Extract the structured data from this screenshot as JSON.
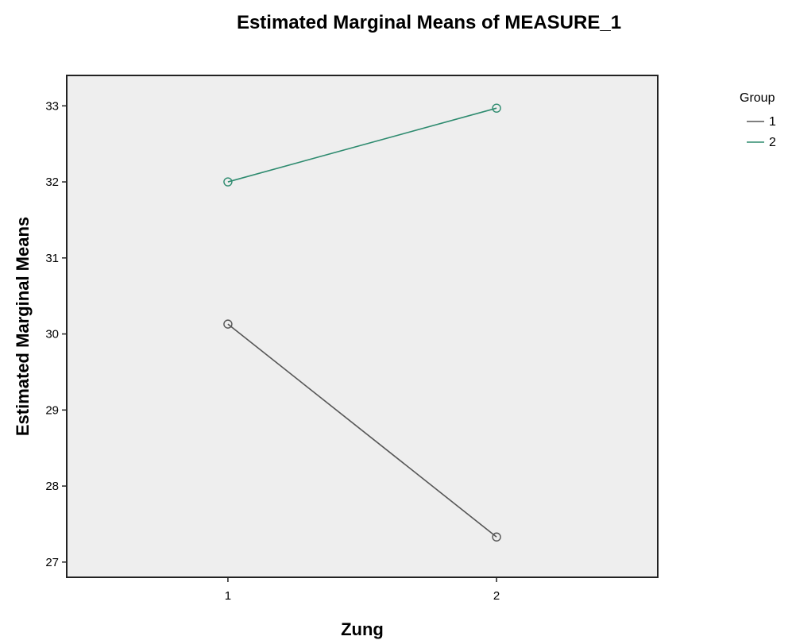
{
  "chart_data": {
    "type": "line",
    "title": "Estimated Marginal Means of MEASURE_1",
    "xlabel": "Zung",
    "ylabel": "Estimated Marginal Means",
    "categories": [
      "1",
      "2"
    ],
    "xlim": [
      0.4,
      2.6
    ],
    "ylim": [
      26.8,
      33.4
    ],
    "yticks": [
      27,
      28,
      29,
      30,
      31,
      32,
      33
    ],
    "grid": false,
    "legend": {
      "title": "Group",
      "placement": "right"
    },
    "series": [
      {
        "name": "1",
        "values": [
          30.13,
          27.33
        ],
        "color": "#555555",
        "marker": "circle"
      },
      {
        "name": "2",
        "values": [
          32.0,
          32.97
        ],
        "color": "#2e8b6f",
        "marker": "circle"
      }
    ],
    "colors": {
      "plot_background": "#eeeeee",
      "frame": "#222222"
    }
  }
}
